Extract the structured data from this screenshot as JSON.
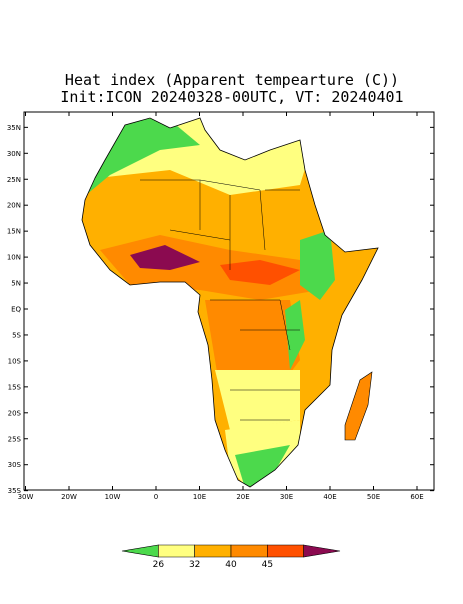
{
  "header": {
    "title": "Heat index (Apparent tempearture (C))",
    "subtitle": "Init:ICON 20240328-00UTC, VT: 20240401"
  },
  "map": {
    "lat_ticks": [
      {
        "value": 35,
        "label": "35N"
      },
      {
        "value": 30,
        "label": "30N"
      },
      {
        "value": 25,
        "label": "25N"
      },
      {
        "value": 20,
        "label": "20N"
      },
      {
        "value": 15,
        "label": "15N"
      },
      {
        "value": 10,
        "label": "10N"
      },
      {
        "value": 5,
        "label": "5N"
      },
      {
        "value": 0,
        "label": "EQ"
      },
      {
        "value": -5,
        "label": "5S"
      },
      {
        "value": -10,
        "label": "10S"
      },
      {
        "value": -15,
        "label": "15S"
      },
      {
        "value": -20,
        "label": "20S"
      },
      {
        "value": -25,
        "label": "25S"
      },
      {
        "value": -30,
        "label": "30S"
      },
      {
        "value": -35,
        "label": "35S"
      }
    ],
    "lon_ticks": [
      {
        "value": -30,
        "label": "30W"
      },
      {
        "value": -20,
        "label": "20W"
      },
      {
        "value": -10,
        "label": "10W"
      },
      {
        "value": 0,
        "label": "0"
      },
      {
        "value": 10,
        "label": "10E"
      },
      {
        "value": 20,
        "label": "20E"
      },
      {
        "value": 30,
        "label": "30E"
      },
      {
        "value": 40,
        "label": "40E"
      },
      {
        "value": 50,
        "label": "50E"
      },
      {
        "value": 60,
        "label": "60E"
      }
    ]
  },
  "colorbar": {
    "levels": [
      26,
      32,
      40,
      45
    ],
    "colors": [
      "#4cd94c",
      "#ffff80",
      "#ffb000",
      "#ff8a00",
      "#ff5000",
      "#8b0a50"
    ]
  }
}
